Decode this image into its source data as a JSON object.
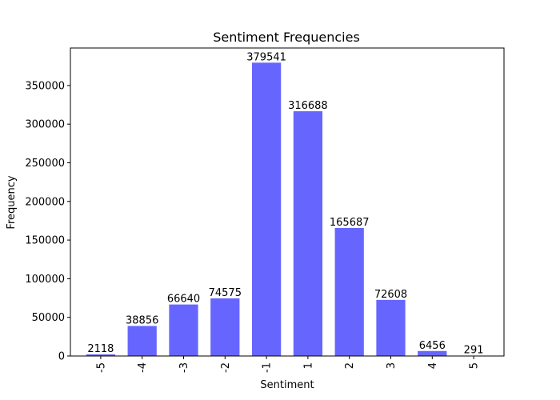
{
  "chart_data": {
    "type": "bar",
    "title": "Sentiment Frequencies",
    "xlabel": "Sentiment",
    "ylabel": "Frequency",
    "categories": [
      "-5",
      "-4",
      "-3",
      "-2",
      "-1",
      "1",
      "2",
      "3",
      "4",
      "5"
    ],
    "values": [
      2118,
      38856,
      66640,
      74575,
      379541,
      316688,
      165687,
      72608,
      6456,
      291
    ],
    "data_labels": [
      "2118",
      "38856",
      "66640",
      "74575",
      "379541",
      "316688",
      "165687",
      "72608",
      "6456",
      "291"
    ],
    "ylim": [
      0,
      398518
    ],
    "yticks": [
      0,
      50000,
      100000,
      150000,
      200000,
      250000,
      300000,
      350000
    ],
    "ytick_labels": [
      "0",
      "50000",
      "100000",
      "150000",
      "200000",
      "250000",
      "300000",
      "350000"
    ],
    "xtick_rotation": "vertical",
    "bar_color": "#6666ff",
    "grid": false,
    "legend": "none"
  }
}
